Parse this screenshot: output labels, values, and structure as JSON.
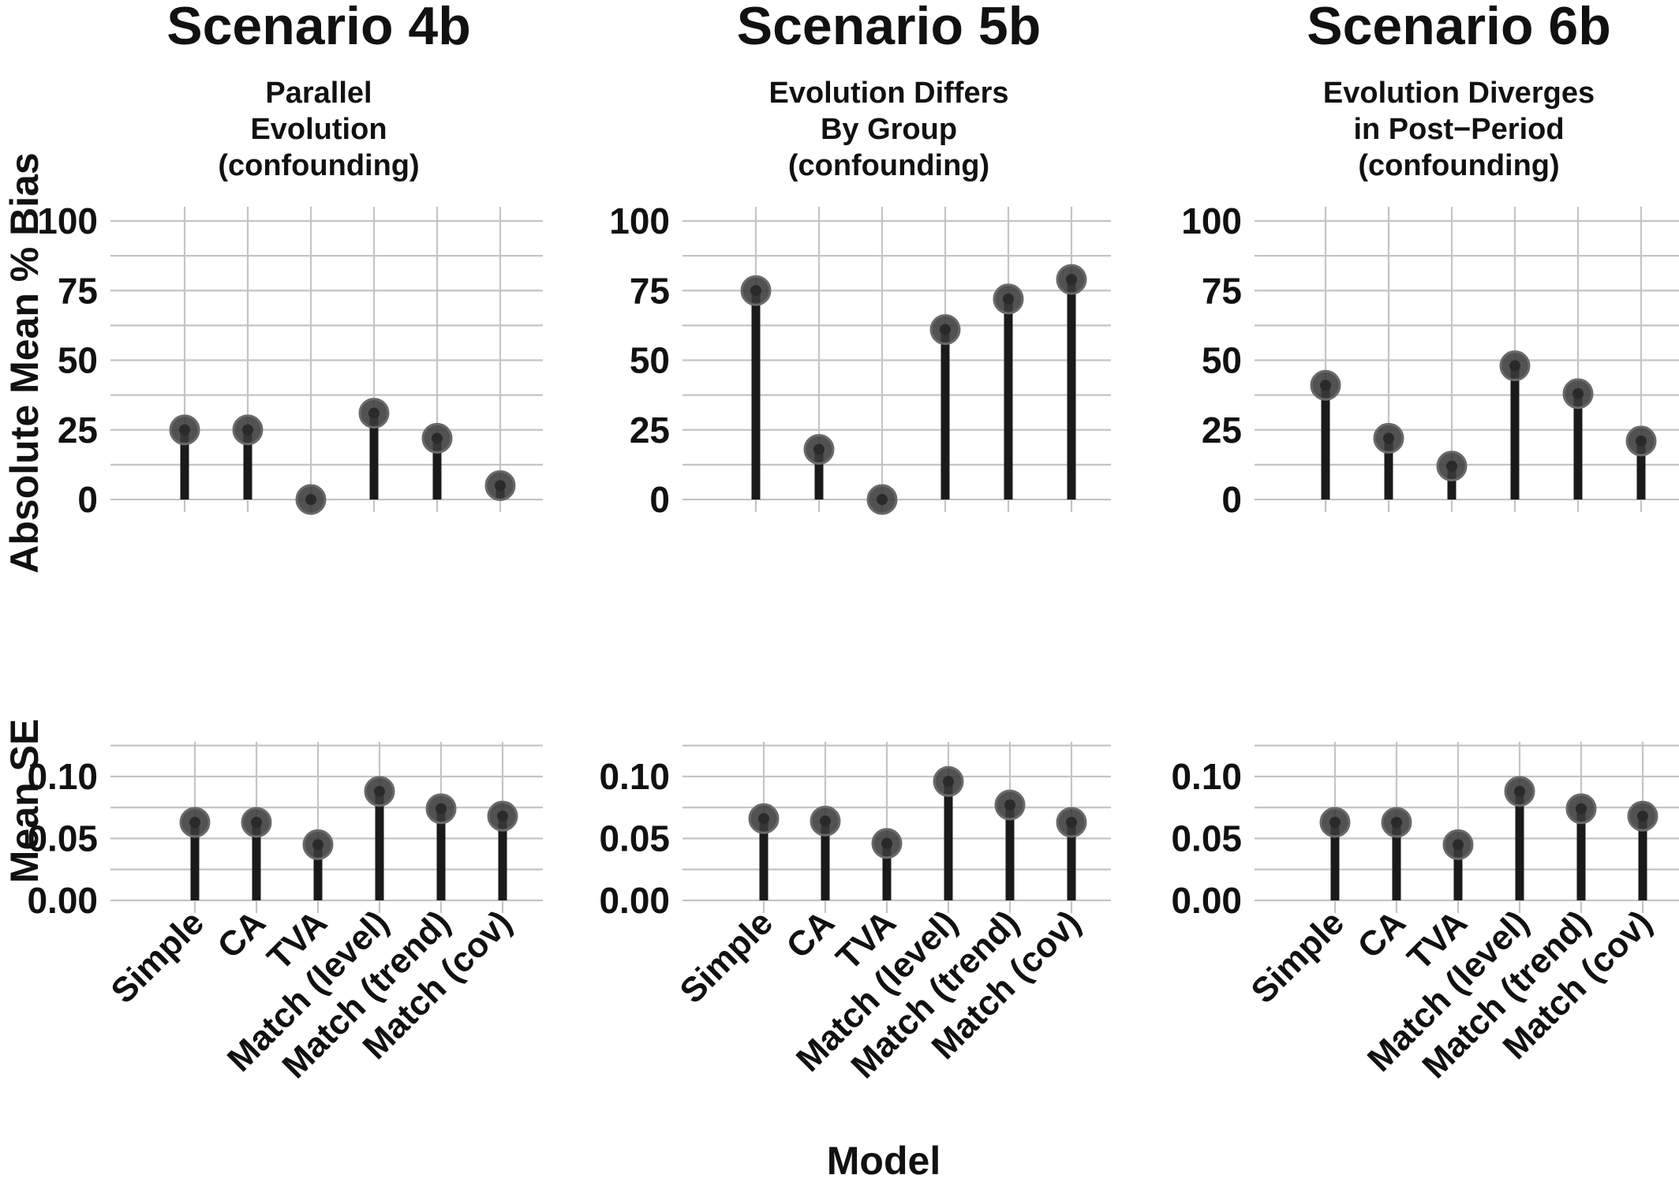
{
  "figure": {
    "ylabel_top": "Absolute Mean % Bias",
    "ylabel_bottom": "Mean SE",
    "xlabel": "Model"
  },
  "chart_data": [
    {
      "type": "lollipop",
      "panel": "top",
      "title": "Scenario 4b",
      "subtitle": [
        "Parallel",
        "Evolution",
        "(confounding)"
      ],
      "categories": [
        "Simple",
        "CA",
        "TVA",
        "Match (level)",
        "Match (trend)",
        "Match (cov)"
      ],
      "values": [
        25,
        25,
        0,
        31,
        22,
        5
      ],
      "ylim": [
        0,
        100
      ],
      "yticks": [
        "0",
        "25",
        "50",
        "75",
        "100"
      ],
      "grid": true
    },
    {
      "type": "lollipop",
      "panel": "top",
      "title": "Scenario 5b",
      "subtitle": [
        "Evolution Differs",
        "By Group",
        "(confounding)"
      ],
      "categories": [
        "Simple",
        "CA",
        "TVA",
        "Match (level)",
        "Match (trend)",
        "Match (cov)"
      ],
      "values": [
        75,
        18,
        0,
        61,
        72,
        79
      ],
      "ylim": [
        0,
        100
      ],
      "yticks": [
        "0",
        "25",
        "50",
        "75",
        "100"
      ],
      "grid": true
    },
    {
      "type": "lollipop",
      "panel": "top",
      "title": "Scenario 6b",
      "subtitle": [
        "Evolution Diverges",
        "in Post−Period",
        "(confounding)"
      ],
      "categories": [
        "Simple",
        "CA",
        "TVA",
        "Match (level)",
        "Match (trend)",
        "Match (cov)"
      ],
      "values": [
        41,
        22,
        12,
        48,
        38,
        21
      ],
      "ylim": [
        0,
        100
      ],
      "yticks": [
        "0",
        "25",
        "50",
        "75",
        "100"
      ],
      "grid": true
    },
    {
      "type": "lollipop",
      "panel": "bottom",
      "categories": [
        "Simple",
        "CA",
        "TVA",
        "Match (level)",
        "Match (trend)",
        "Match (cov)"
      ],
      "values": [
        0.063,
        0.063,
        0.045,
        0.088,
        0.074,
        0.068
      ],
      "ylim": [
        0,
        0.125
      ],
      "yticks": [
        "0.00",
        "0.05",
        "0.10"
      ],
      "grid": true
    },
    {
      "type": "lollipop",
      "panel": "bottom",
      "categories": [
        "Simple",
        "CA",
        "TVA",
        "Match (level)",
        "Match (trend)",
        "Match (cov)"
      ],
      "values": [
        0.066,
        0.064,
        0.046,
        0.096,
        0.077,
        0.063
      ],
      "ylim": [
        0,
        0.125
      ],
      "yticks": [
        "0.00",
        "0.05",
        "0.10"
      ],
      "grid": true
    },
    {
      "type": "lollipop",
      "panel": "bottom",
      "categories": [
        "Simple",
        "CA",
        "TVA",
        "Match (level)",
        "Match (trend)",
        "Match (cov)"
      ],
      "values": [
        0.063,
        0.063,
        0.045,
        0.088,
        0.074,
        0.068
      ],
      "ylim": [
        0,
        0.125
      ],
      "yticks": [
        "0.00",
        "0.05",
        "0.10"
      ],
      "grid": true
    }
  ],
  "style": {
    "stem_color": "#1a1a1a",
    "point_color": "#3a3a3a",
    "point_edge": "#6a6a6a",
    "grid_color": "#c4c4c4",
    "text_color": "#111111"
  }
}
